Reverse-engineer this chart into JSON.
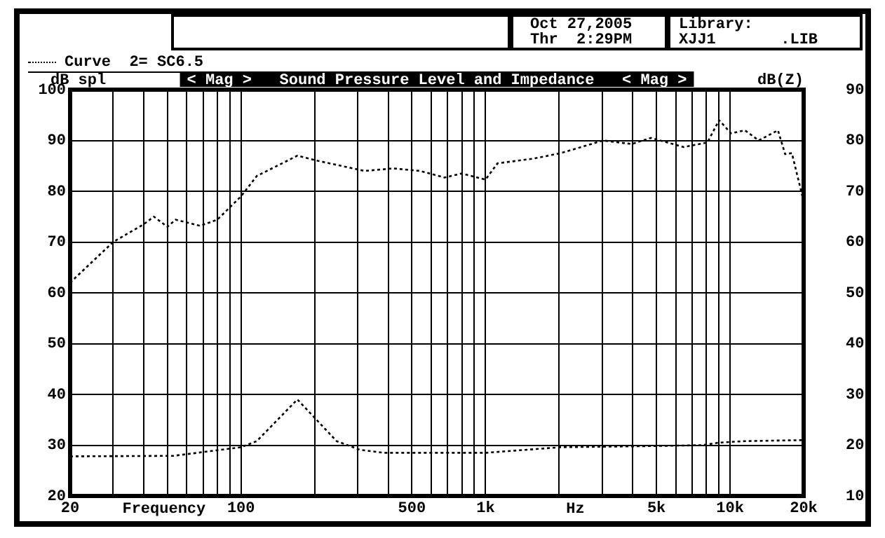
{
  "chart_data": {
    "type": "line",
    "title": "< Mag >   Sound Pressure Level and Impedance   < Mag >",
    "xlabel": "Frequency",
    "ylabel": "dB spl",
    "y2label": "dB(Z)",
    "annotations": [
      "Hz",
      "Oct 27,2005",
      "Thr  2:29PM",
      "Library:",
      "XJJ1       .LIB"
    ],
    "log": "x",
    "grid": true,
    "legend": "top left",
    "marker": "none",
    "line_style": "dotted",
    "xlim": [
      20,
      20000
    ],
    "xticks": [
      20,
      {
        "value": 30,
        "label": null
      },
      {
        "value": 40,
        "label": null
      },
      {
        "value": 50,
        "label": null
      },
      {
        "value": 60,
        "label": null
      },
      {
        "value": 70,
        "label": null
      },
      {
        "value": 80,
        "label": null
      },
      {
        "value": 90,
        "label": null
      },
      100,
      {
        "value": 200,
        "label": null
      },
      {
        "value": 300,
        "label": null
      },
      {
        "value": 400,
        "label": null
      },
      500,
      {
        "value": 600,
        "label": null
      },
      {
        "value": 700,
        "label": null
      },
      {
        "value": 800,
        "label": null
      },
      {
        "value": 900,
        "label": null
      },
      {
        "value": 1000,
        "label": "1k"
      },
      {
        "value": 2000,
        "label": null
      },
      {
        "value": 3000,
        "label": null
      },
      {
        "value": 4000,
        "label": null
      },
      {
        "value": 5000,
        "label": "5k"
      },
      {
        "value": 6000,
        "label": null
      },
      {
        "value": 7000,
        "label": null
      },
      {
        "value": 8000,
        "label": null
      },
      {
        "value": 9000,
        "label": null
      },
      {
        "value": 10000,
        "label": "10k"
      },
      {
        "value": 20000,
        "label": "20k"
      }
    ],
    "ylim": [
      20,
      100
    ],
    "yticks": [
      20,
      30,
      40,
      50,
      60,
      70,
      80,
      90,
      100
    ],
    "y2lim": [
      10,
      90
    ],
    "y2ticks": [
      10,
      20,
      30,
      40,
      50,
      60,
      70,
      80,
      90
    ],
    "series": [
      {
        "name": "Curve  2= SC6.5",
        "color": "#000000",
        "x": [
          20,
          30,
          40,
          44,
          50,
          54,
          68,
          80,
          100,
          116,
          170,
          206,
          320,
          420,
          540,
          680,
          800,
          1000,
          1120,
          1560,
          2030,
          3030,
          3960,
          4740,
          6470,
          8080,
          9020,
          10100,
          11500,
          13100,
          15700,
          16800,
          17900,
          20000
        ],
        "values": [
          62,
          70,
          73.5,
          75,
          73,
          74.4,
          73.2,
          74.4,
          79,
          83,
          87,
          86,
          84,
          84.5,
          84,
          82.7,
          83.5,
          82.3,
          85.5,
          86.4,
          87.5,
          90,
          89.3,
          90.5,
          88.7,
          89.6,
          94,
          91.4,
          92,
          90,
          92,
          87.3,
          87.5,
          78
        ]
      },
      {
        "color": "#000000",
        "axis": "y2",
        "x": [
          20,
          53,
          100,
          116,
          170,
          246,
          306,
          384,
          1000,
          2030,
          4340,
          7700,
          9000,
          11500,
          20000
        ],
        "values": [
          17.8,
          17.9,
          19.6,
          20.8,
          29,
          20.8,
          19.1,
          18.5,
          18.5,
          19.6,
          19.8,
          20,
          20.5,
          20.8,
          21
        ]
      }
    ]
  }
}
